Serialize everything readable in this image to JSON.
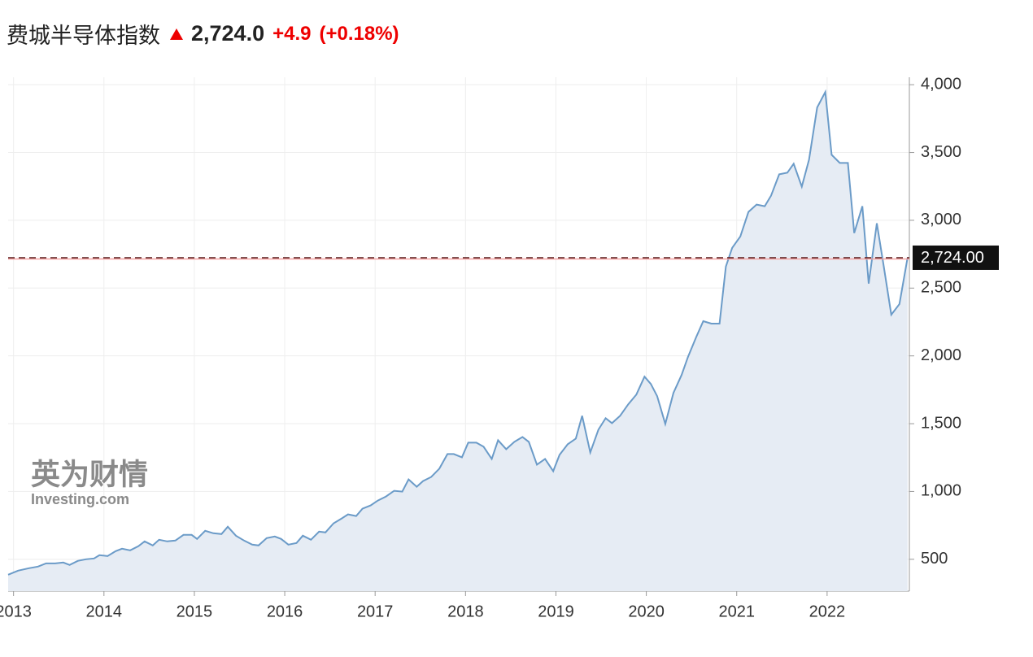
{
  "chart_data": {
    "type": "area",
    "title": "费城半导体指数",
    "header": {
      "price": "2,724.0",
      "change": "+4.9",
      "change_percent": "(+0.18%)"
    },
    "watermark": [
      "英为财情",
      "Investing.com"
    ],
    "x": [
      2012.94,
      2013.05,
      2013.17,
      2013.27,
      2013.36,
      2013.46,
      2013.55,
      2013.62,
      2013.71,
      2013.8,
      2013.89,
      2013.95,
      2014.04,
      2014.13,
      2014.2,
      2014.29,
      2014.38,
      2014.45,
      2014.54,
      2014.61,
      2014.7,
      2014.79,
      2014.88,
      2014.97,
      2015.03,
      2015.12,
      2015.21,
      2015.3,
      2015.37,
      2015.46,
      2015.55,
      2015.64,
      2015.71,
      2015.8,
      2015.89,
      2015.96,
      2016.04,
      2016.13,
      2016.2,
      2016.29,
      2016.38,
      2016.45,
      2016.54,
      2016.63,
      2016.7,
      2016.79,
      2016.86,
      2016.95,
      2017.03,
      2017.12,
      2017.21,
      2017.3,
      2017.37,
      2017.46,
      2017.53,
      2017.62,
      2017.71,
      2017.8,
      2017.87,
      2017.96,
      2018.03,
      2018.12,
      2018.2,
      2018.29,
      2018.36,
      2018.45,
      2018.54,
      2018.63,
      2018.7,
      2018.79,
      2018.88,
      2018.97,
      2019.04,
      2019.13,
      2019.22,
      2019.29,
      2019.38,
      2019.47,
      2019.55,
      2019.62,
      2019.71,
      2019.8,
      2019.89,
      2019.98,
      2020.05,
      2020.12,
      2020.21,
      2020.3,
      2020.39,
      2020.46,
      2020.55,
      2020.63,
      2020.72,
      2020.81,
      2020.88,
      2020.95,
      2021.04,
      2021.13,
      2021.22,
      2021.31,
      2021.38,
      2021.47,
      2021.56,
      2021.63,
      2021.72,
      2021.8,
      2021.89,
      2021.98,
      2022.05,
      2022.14,
      2022.23,
      2022.3,
      2022.39,
      2022.46,
      2022.55,
      2022.62,
      2022.71,
      2022.8,
      2022.89
    ],
    "series": [
      {
        "name": "费城半导体指数",
        "color": "#6b9bc8",
        "fill": "#e6ecf4",
        "values": [
          386,
          416,
          434,
          446,
          470,
          470,
          476,
          458,
          488,
          500,
          506,
          530,
          524,
          560,
          578,
          566,
          596,
          632,
          602,
          644,
          632,
          638,
          680,
          680,
          650,
          710,
          692,
          686,
          740,
          674,
          638,
          608,
          602,
          656,
          668,
          650,
          608,
          620,
          674,
          644,
          704,
          698,
          765,
          801,
          831,
          819,
          873,
          897,
          933,
          963,
          1005,
          999,
          1089,
          1035,
          1077,
          1107,
          1168,
          1276,
          1276,
          1252,
          1360,
          1360,
          1330,
          1240,
          1378,
          1312,
          1366,
          1402,
          1366,
          1198,
          1240,
          1150,
          1270,
          1348,
          1390,
          1558,
          1288,
          1456,
          1540,
          1504,
          1558,
          1643,
          1715,
          1847,
          1793,
          1703,
          1498,
          1727,
          1859,
          1991,
          2136,
          2256,
          2238,
          2238,
          2659,
          2797,
          2881,
          3062,
          3116,
          3104,
          3182,
          3339,
          3351,
          3417,
          3248,
          3447,
          3832,
          3946,
          3483,
          3423,
          3423,
          2906,
          3104,
          2533,
          2978,
          2689,
          2304,
          2382,
          2724
        ]
      }
    ],
    "current_value": {
      "value": 2724,
      "label": "2,724.00"
    },
    "xlim": [
      2012.94,
      2022.91
    ],
    "xticks": [
      2013,
      2014,
      2015,
      2016,
      2017,
      2018,
      2019,
      2020,
      2021,
      2022
    ],
    "ylim": [
      265,
      4055
    ],
    "yticks": [
      500,
      {
        "value": 1000,
        "label": "1,000"
      },
      {
        "value": 1500,
        "label": "1,500"
      },
      {
        "value": 2000,
        "label": "2,000"
      },
      {
        "value": 2500,
        "label": "2,500"
      },
      {
        "value": 3000,
        "label": "3,000"
      },
      {
        "value": 3500,
        "label": "3,500"
      },
      {
        "value": 4000,
        "label": "4,000"
      }
    ],
    "grid": true
  }
}
